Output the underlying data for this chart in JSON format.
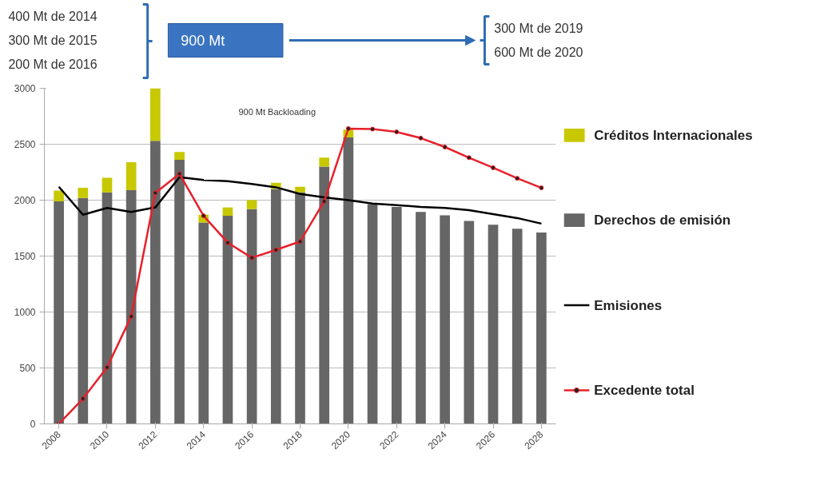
{
  "chart_data": {
    "type": "bar",
    "stacked": true,
    "x": [
      2008,
      2009,
      2010,
      2011,
      2012,
      2013,
      2014,
      2015,
      2016,
      2017,
      2018,
      2019,
      2020,
      2021,
      2022,
      2023,
      2024,
      2025,
      2026,
      2027,
      2028
    ],
    "series": [
      {
        "name": "Derechos de emisión",
        "color": "#666666",
        "values": [
          1990,
          2020,
          2070,
          2090,
          2530,
          2360,
          1800,
          1860,
          1920,
          2100,
          2070,
          2300,
          2560,
          1965,
          1940,
          1895,
          1865,
          1815,
          1780,
          1745,
          1710
        ]
      },
      {
        "name": "Créditos Internacionales",
        "color": "#c8c800",
        "values": [
          95,
          90,
          130,
          250,
          470,
          70,
          70,
          75,
          80,
          55,
          50,
          80,
          70,
          0,
          0,
          0,
          0,
          0,
          0,
          0,
          0
        ]
      },
      {
        "name": "Emisiones",
        "type": "line",
        "color": "#000000",
        "marker": "none",
        "values": [
          2120,
          1870,
          1930,
          1895,
          1935,
          2205,
          2180,
          2170,
          2145,
          2115,
          2055,
          2025,
          2000,
          1970,
          1955,
          1940,
          1930,
          1910,
          1875,
          1840,
          1790
        ]
      },
      {
        "name": "Excedente total",
        "type": "line",
        "color": "#e8202a",
        "marker": "circle",
        "values": [
          0,
          225,
          505,
          960,
          2065,
          2235,
          1860,
          1620,
          1485,
          1555,
          1630,
          1990,
          2640,
          2635,
          2610,
          2555,
          2475,
          2380,
          2290,
          2195,
          2110
        ]
      }
    ],
    "xlim": [
      2007.4,
      2028.6
    ],
    "xticks": [
      2008,
      2010,
      2012,
      2014,
      2016,
      2018,
      2020,
      2022,
      2024,
      2026,
      2028
    ],
    "ylim": [
      0,
      3000
    ],
    "yticks": [
      0,
      500,
      1000,
      1500,
      2000,
      2500,
      3000
    ],
    "grid": "y",
    "legend": "right",
    "annotations": [
      "400 Mt de 2014",
      "300 Mt de 2015",
      "200 Mt de 2016",
      "900 Mt",
      "300 Mt de 2019",
      "600 Mt de 2020",
      "900 Mt Backloading"
    ]
  }
}
